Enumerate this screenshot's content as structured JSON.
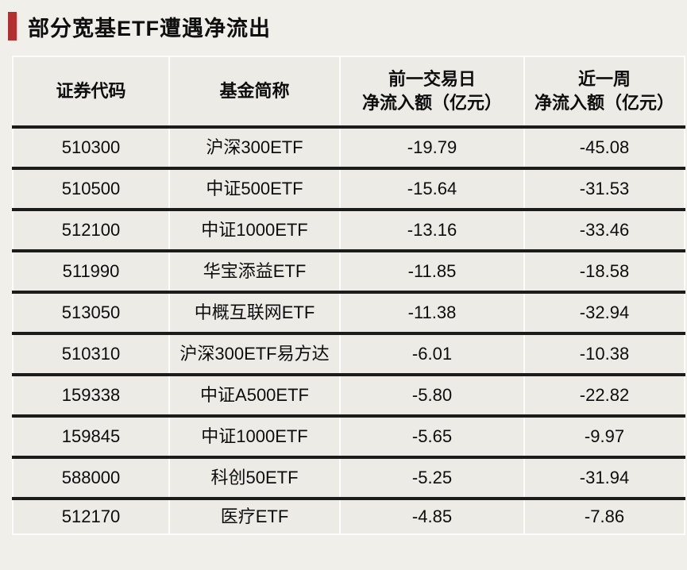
{
  "page": {
    "title": "部分宽基ETF遭遇净流出"
  },
  "colors": {
    "accent_red": "#b23130",
    "page_bg": "#f0efea",
    "cell_bg": "#ecebe6",
    "row_divider": "#1b1b1b",
    "column_divider": "#fcfcfa"
  },
  "table": {
    "headers": [
      "证券代码",
      "基金简称",
      "前一交易日\n净流入额（亿元）",
      "近一周\n净流入额（亿元）"
    ],
    "rows": [
      {
        "code": "510300",
        "name": "沪深300ETF",
        "prev_day": "-19.79",
        "week": "-45.08"
      },
      {
        "code": "510500",
        "name": "中证500ETF",
        "prev_day": "-15.64",
        "week": "-31.53"
      },
      {
        "code": "512100",
        "name": "中证1000ETF",
        "prev_day": "-13.16",
        "week": "-33.46"
      },
      {
        "code": "511990",
        "name": "华宝添益ETF",
        "prev_day": "-11.85",
        "week": "-18.58"
      },
      {
        "code": "513050",
        "name": "中概互联网ETF",
        "prev_day": "-11.38",
        "week": "-32.94"
      },
      {
        "code": "510310",
        "name": "沪深300ETF易方达",
        "prev_day": "-6.01",
        "week": "-10.38"
      },
      {
        "code": "159338",
        "name": "中证A500ETF",
        "prev_day": "-5.80",
        "week": "-22.82"
      },
      {
        "code": "159845",
        "name": "中证1000ETF",
        "prev_day": "-5.65",
        "week": "-9.97"
      },
      {
        "code": "588000",
        "name": "科创50ETF",
        "prev_day": "-5.25",
        "week": "-31.94"
      },
      {
        "code": "512170",
        "name": "医疗ETF",
        "prev_day": "-4.85",
        "week": "-7.86"
      }
    ]
  },
  "chart_data": {
    "type": "table",
    "title": "部分宽基ETF遭遇净流出",
    "columns": [
      "证券代码",
      "基金简称",
      "前一交易日净流入额（亿元）",
      "近一周净流入额（亿元）"
    ],
    "rows": [
      [
        "510300",
        "沪深300ETF",
        -19.79,
        -45.08
      ],
      [
        "510500",
        "中证500ETF",
        -15.64,
        -31.53
      ],
      [
        "512100",
        "中证1000ETF",
        -13.16,
        -33.46
      ],
      [
        "511990",
        "华宝添益ETF",
        -11.85,
        -18.58
      ],
      [
        "513050",
        "中概互联网ETF",
        -11.38,
        -32.94
      ],
      [
        "510310",
        "沪深300ETF易方达",
        -6.01,
        -10.38
      ],
      [
        "159338",
        "中证A500ETF",
        -5.8,
        -22.82
      ],
      [
        "159845",
        "中证1000ETF",
        -5.65,
        -9.97
      ],
      [
        "588000",
        "科创50ETF",
        -5.25,
        -31.94
      ],
      [
        "512170",
        "医疗ETF",
        -4.85,
        -7.86
      ]
    ]
  }
}
